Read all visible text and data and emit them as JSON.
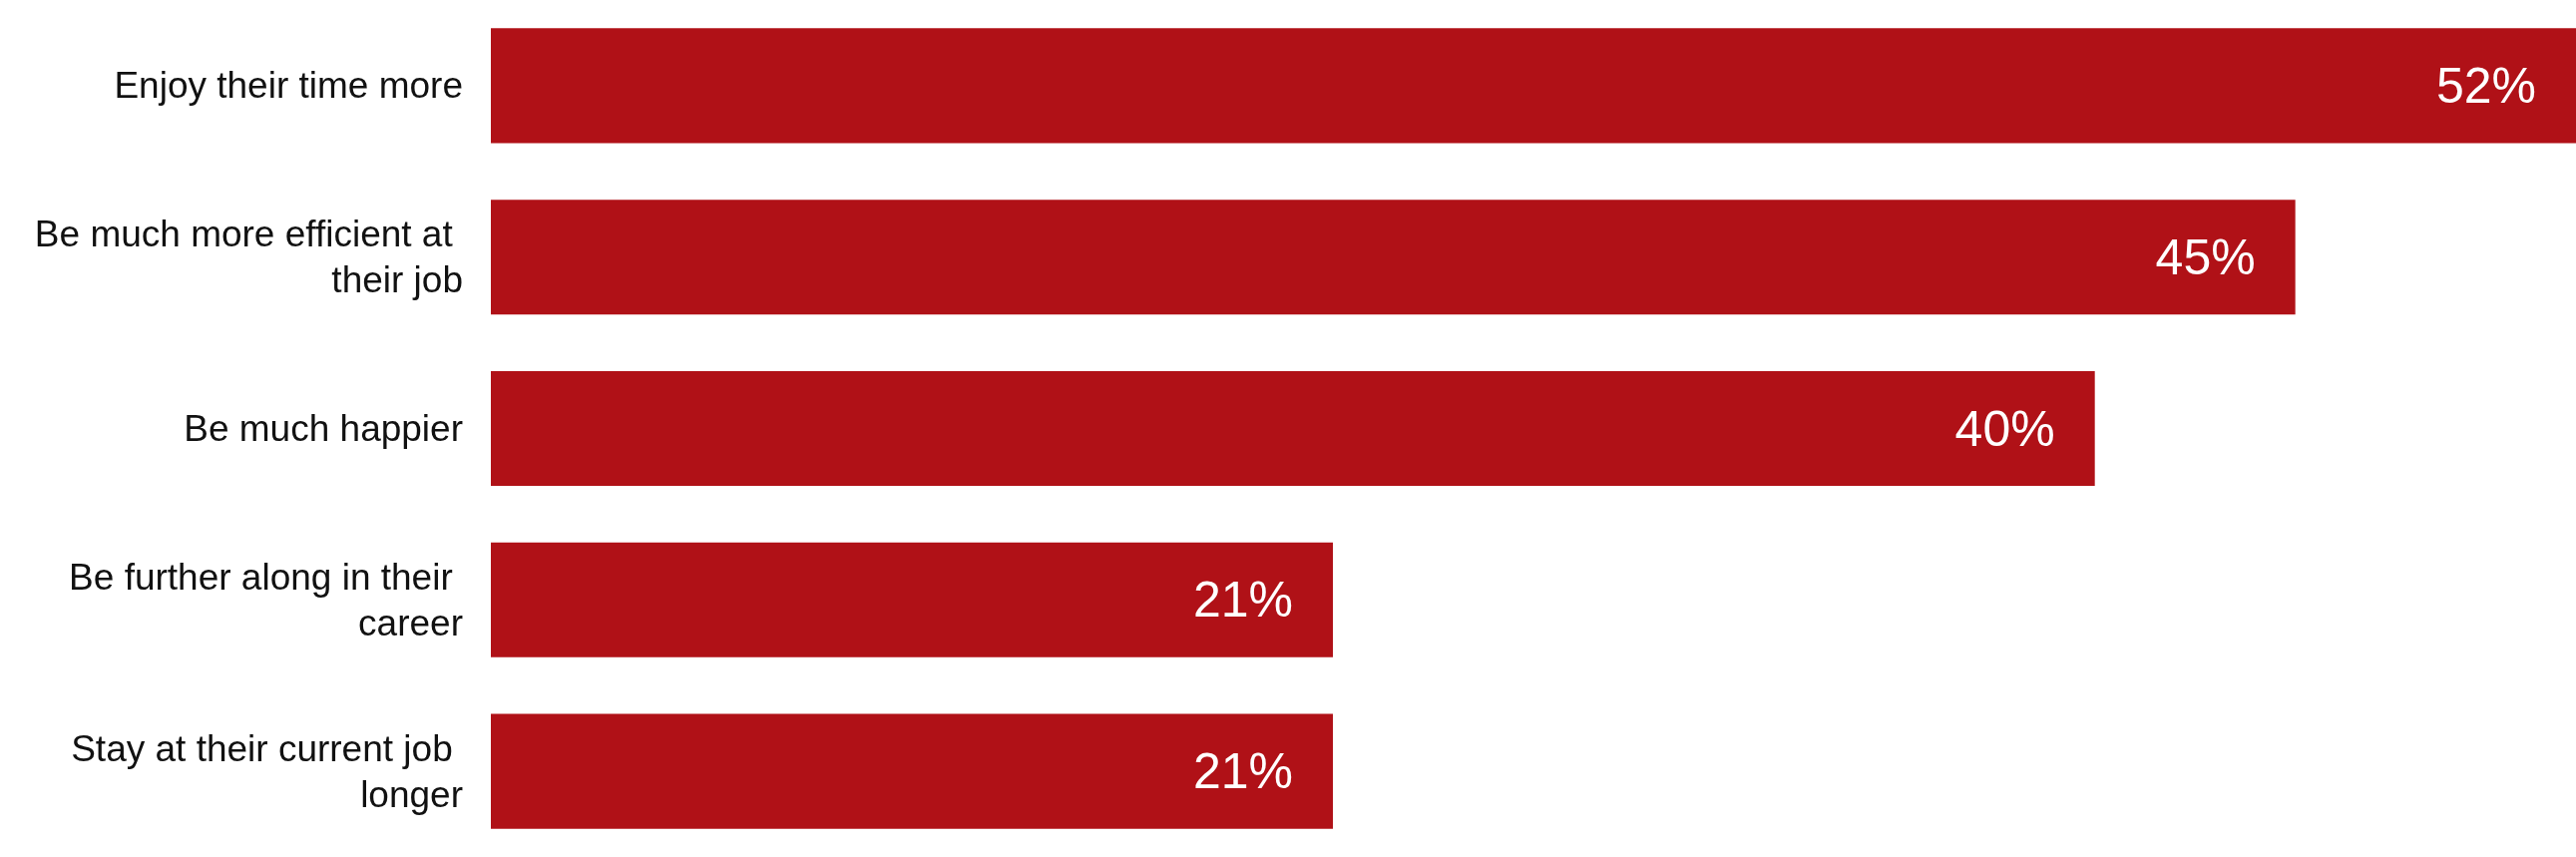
{
  "chart_data": {
    "type": "bar",
    "orientation": "horizontal",
    "categories": [
      "Enjoy their time more",
      "Be much more efficient at their job",
      "Be much happier",
      "Be further along in their career",
      "Stay at their current job longer"
    ],
    "values": [
      52,
      45,
      40,
      21,
      21
    ],
    "value_labels": [
      "52%",
      "45%",
      "40%",
      "21%",
      "21%"
    ],
    "color": "#b01117",
    "xlim": [
      0,
      52
    ]
  }
}
